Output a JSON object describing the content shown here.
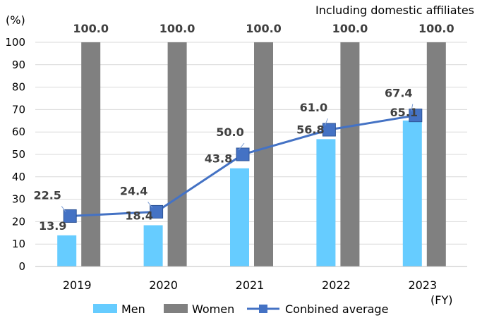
{
  "chart_data": {
    "type": "bar",
    "subtitle": "Including domestic affiliates",
    "y_unit_label": "(%)",
    "x_unit_label": "(FY)",
    "categories": [
      "2019",
      "2020",
      "2021",
      "2022",
      "2023"
    ],
    "ylim": [
      0,
      100
    ],
    "yticks": [
      0,
      10,
      20,
      30,
      40,
      50,
      60,
      70,
      80,
      90,
      100
    ],
    "grid": true,
    "legend_position": "bottom",
    "series": [
      {
        "name": "Men",
        "type": "bar",
        "color": "#66CCFF",
        "values": [
          13.9,
          18.4,
          43.8,
          56.8,
          65.1
        ],
        "labels": [
          "13.9",
          "18.4",
          "43.8",
          "56.8",
          "65.1"
        ]
      },
      {
        "name": "Women",
        "type": "bar",
        "color": "#808080",
        "values": [
          100.0,
          100.0,
          100.0,
          100.0,
          100.0
        ],
        "labels": [
          "100.0",
          "100.0",
          "100.0",
          "100.0",
          "100.0"
        ]
      },
      {
        "name": "Conbined average",
        "type": "line",
        "color": "#4472C4",
        "values": [
          22.5,
          24.4,
          50.0,
          61.0,
          67.4
        ],
        "labels": [
          "22.5",
          "24.4",
          "50.0",
          "61.0",
          "67.4"
        ]
      }
    ]
  }
}
